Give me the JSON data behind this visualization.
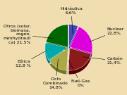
{
  "values": [
    6.6,
    22.8,
    21.4,
    0.4,
    14.8,
    12.8,
    21.5
  ],
  "colors": [
    "#4444bb",
    "#dd00dd",
    "#8b1a1a",
    "#8b5e3c",
    "#aaaa44",
    "#00aaaa",
    "#006600"
  ],
  "shadow_colors": [
    "#333388",
    "#880088",
    "#5a0000",
    "#5a3a1a",
    "#777722",
    "#007777",
    "#003300"
  ],
  "labels": [
    "Hidráulica\n6,6%",
    "Nuclear\n22,8%",
    "Carbón\n21,4%",
    "Fuel-Gas\n0%",
    "Ciclo\nCombinado\n14,8%",
    "Eólica\n12,8 %",
    "Otros (solar,\nbiomasa,\ncogen,\nminihydrauli\nca) 21,5%"
  ],
  "startangle": 90,
  "bg_color": "#f0deb0",
  "font_size": 4.5,
  "label_positions": [
    [
      0.08,
      1.18,
      "center"
    ],
    [
      1.22,
      0.52,
      "left"
    ],
    [
      1.22,
      -0.42,
      "left"
    ],
    [
      0.38,
      -1.15,
      "center"
    ],
    [
      -0.42,
      -1.15,
      "center"
    ],
    [
      -1.22,
      -0.52,
      "right"
    ],
    [
      -1.22,
      0.42,
      "right"
    ]
  ]
}
